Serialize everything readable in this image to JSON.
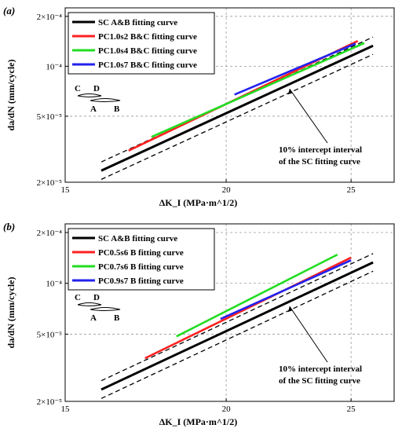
{
  "chart_data": [
    {
      "type": "line",
      "panel_label": "(a)",
      "xlabel": "ΔK_I (MPa·m^1/2)",
      "ylabel": "da/dN (mm/cycle)",
      "x_scale": "log",
      "y_scale": "log",
      "xlim": [
        15,
        27
      ],
      "ylim": [
        2e-05,
        0.000225
      ],
      "x_ticks": [
        15,
        20,
        25
      ],
      "y_ticks": [
        2e-05,
        5e-05,
        0.0001,
        0.0002
      ],
      "y_tick_labels": [
        "2×10⁻⁵",
        "5×10⁻⁵",
        "10⁻⁴",
        "2×10⁻⁴"
      ],
      "grid": true,
      "legend_position": "top-left",
      "series": [
        {
          "name": "SC A&B fitting curve",
          "color": "#000000",
          "x": [
            16.0,
            26.0
          ],
          "y": [
            2.35e-05,
            0.000133
          ]
        },
        {
          "name": "PC1.0s2 B&C fitting curve",
          "color": "#ff2020",
          "x": [
            16.8,
            25.3
          ],
          "y": [
            3.1e-05,
            0.000142
          ]
        },
        {
          "name": "PC1.0s4 B&C fitting curve",
          "color": "#22dd22",
          "x": [
            17.5,
            25.6
          ],
          "y": [
            3.75e-05,
            0.000138
          ]
        },
        {
          "name": "PC1.0s7 B&C fitting curve",
          "color": "#2222ee",
          "x": [
            20.3,
            25.2
          ],
          "y": [
            6.75e-05,
            0.000137
          ]
        }
      ],
      "interval_bands": [
        {
          "x": [
            16.0,
            26.0
          ],
          "y": [
            2.65e-05,
            0.00015
          ]
        },
        {
          "x": [
            16.0,
            26.0
          ],
          "y": [
            2.08e-05,
            0.000118
          ]
        }
      ],
      "annotation": [
        "10% intercept interval",
        "of the SC fitting curve"
      ],
      "schematic_labels": [
        "C",
        "D",
        "A",
        "B"
      ]
    },
    {
      "type": "line",
      "panel_label": "(b)",
      "xlabel": "ΔK_I (MPa·m^1/2)",
      "ylabel": "da/dN (mm/cycle)",
      "x_scale": "log",
      "y_scale": "log",
      "xlim": [
        15,
        27
      ],
      "ylim": [
        2e-05,
        0.000225
      ],
      "x_ticks": [
        15,
        20,
        25
      ],
      "y_ticks": [
        2e-05,
        5e-05,
        0.0001,
        0.0002
      ],
      "y_tick_labels": [
        "2×10⁻⁵",
        "5×10⁻⁵",
        "10⁻⁴",
        "2×10⁻⁴"
      ],
      "grid": true,
      "legend_position": "top-left",
      "series": [
        {
          "name": "SC A&B fitting curve",
          "color": "#000000",
          "x": [
            16.0,
            26.0
          ],
          "y": [
            2.35e-05,
            0.000133
          ]
        },
        {
          "name": "PC0.5s6 B fitting curve",
          "color": "#ff2020",
          "x": [
            17.3,
            25.0
          ],
          "y": [
            3.6e-05,
            0.000142
          ]
        },
        {
          "name": "PC0.7s6 B fitting curve",
          "color": "#22dd22",
          "x": [
            18.3,
            24.4
          ],
          "y": [
            4.85e-05,
            0.000148
          ]
        },
        {
          "name": "PC0.9s7 B fitting curve",
          "color": "#2222ee",
          "x": [
            19.8,
            25.0
          ],
          "y": [
            6.15e-05,
            0.000137
          ]
        }
      ],
      "interval_bands": [
        {
          "x": [
            16.0,
            26.0
          ],
          "y": [
            2.65e-05,
            0.00015
          ]
        },
        {
          "x": [
            16.0,
            26.0
          ],
          "y": [
            2.08e-05,
            0.000118
          ]
        }
      ],
      "annotation": [
        "10% intercept interval",
        "of the SC fitting curve"
      ],
      "schematic_labels": [
        "C",
        "D",
        "A",
        "B"
      ]
    }
  ]
}
